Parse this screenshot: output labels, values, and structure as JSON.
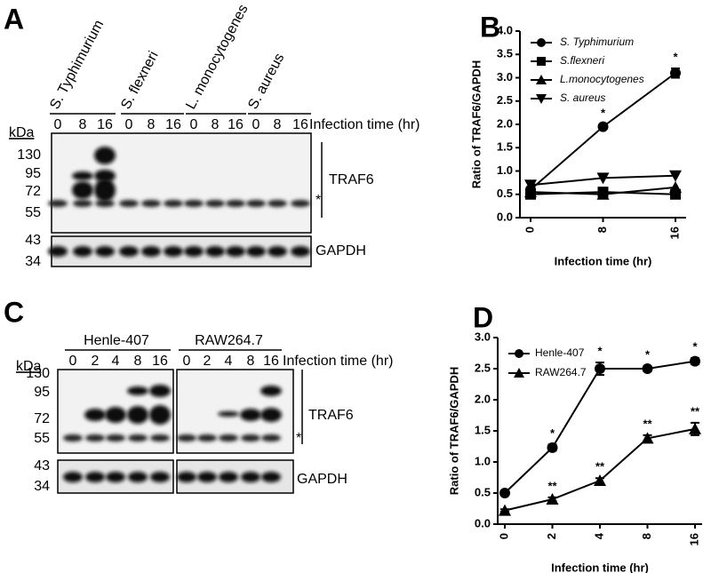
{
  "blots": [
    {
      "letter": "A",
      "groups": [
        {
          "name": "S. Typhimurium",
          "lanes": [
            "0",
            "8",
            "16"
          ]
        },
        {
          "name": "S. flexneri",
          "lanes": [
            "0",
            "8",
            "16"
          ]
        },
        {
          "name": "L. monocytogenes",
          "lanes": [
            "0",
            "8",
            "16"
          ]
        },
        {
          "name": "S. aureus",
          "lanes": [
            "0",
            "8",
            "16"
          ]
        }
      ],
      "time_label": "Infection time (hr)",
      "kda": "kDa",
      "markers": [
        "130",
        "95",
        "72",
        "55"
      ],
      "loading_markers": [
        "43",
        "34"
      ],
      "target": "TRAF6",
      "loading": "GAPDH",
      "asterisk": "*"
    },
    {
      "letter": "C",
      "groups": [
        {
          "name": "Henle-407",
          "lanes": [
            "0",
            "2",
            "4",
            "8",
            "16"
          ]
        },
        {
          "name": "RAW264.7",
          "lanes": [
            "0",
            "2",
            "4",
            "8",
            "16"
          ]
        }
      ],
      "time_label": "Infection time (hr)",
      "kda": "kDa",
      "markers": [
        "130",
        "95",
        "72",
        "55"
      ],
      "loading_markers": [
        "43",
        "34"
      ],
      "target": "TRAF6",
      "loading": "GAPDH",
      "asterisk": "*"
    }
  ],
  "chart_data": [
    {
      "type": "line",
      "panel": "B",
      "ylabel": "Ratio of TRAF6/GAPDH",
      "xlabel": "Infection time (hr)",
      "categories": [
        "0",
        "8",
        "16"
      ],
      "ylim": [
        0,
        4
      ],
      "yticks": [
        {
          "value": 0,
          "label": "0.0"
        },
        0.5,
        {
          "value": 1,
          "label": "1.0"
        },
        1.5,
        {
          "value": 2,
          "label": "2.0"
        },
        2.5,
        {
          "value": 3,
          "label": "3.0"
        },
        3.5,
        {
          "value": 4,
          "label": "4.0"
        }
      ],
      "series": [
        {
          "name": "S. Typhimurium",
          "color": "#000000",
          "marker": "circle",
          "values": [
            0.6,
            1.95,
            3.1
          ],
          "errors": [
            0.05,
            0.05,
            0.1
          ],
          "annotations": [
            null,
            "*",
            "*"
          ]
        },
        {
          "name": "S.flexneri",
          "color": "#000000",
          "marker": "square",
          "values": [
            0.5,
            0.55,
            0.5
          ]
        },
        {
          "name": "L.monocytogenes",
          "color": "#000000",
          "marker": "triangle",
          "values": [
            0.55,
            0.5,
            0.65
          ]
        },
        {
          "name": "S. aureus",
          "color": "#000000",
          "marker": "triangle-down",
          "values": [
            0.7,
            0.85,
            0.9
          ]
        }
      ]
    },
    {
      "type": "line",
      "panel": "D",
      "ylabel": "Ratio of TRAF6/GAPDH",
      "xlabel": "Infection time (hr)",
      "categories": [
        "0",
        "2",
        "4",
        "8",
        "16"
      ],
      "ylim": [
        0,
        3
      ],
      "yticks": [
        {
          "value": 0,
          "label": "0.0"
        },
        0.5,
        {
          "value": 1,
          "label": "1.0"
        },
        1.5,
        {
          "value": 2,
          "label": "2.0"
        },
        2.5,
        {
          "value": 3,
          "label": "3.0"
        }
      ],
      "series": [
        {
          "name": "Henle-407",
          "color": "#000000",
          "marker": "circle",
          "values": [
            0.5,
            1.23,
            2.5,
            2.5,
            2.62
          ],
          "errors": [
            0.03,
            0.05,
            0.1,
            0.04,
            0.05
          ],
          "annotations": [
            null,
            "*",
            "*",
            "*",
            "*"
          ]
        },
        {
          "name": "RAW264.7",
          "color": "#000000",
          "marker": "triangle",
          "values": [
            0.22,
            0.4,
            0.7,
            1.38,
            1.53
          ],
          "errors": [
            0.02,
            0.03,
            0.04,
            0.05,
            0.1
          ],
          "annotations": [
            null,
            "**",
            "**",
            "**",
            "**"
          ]
        }
      ]
    }
  ]
}
